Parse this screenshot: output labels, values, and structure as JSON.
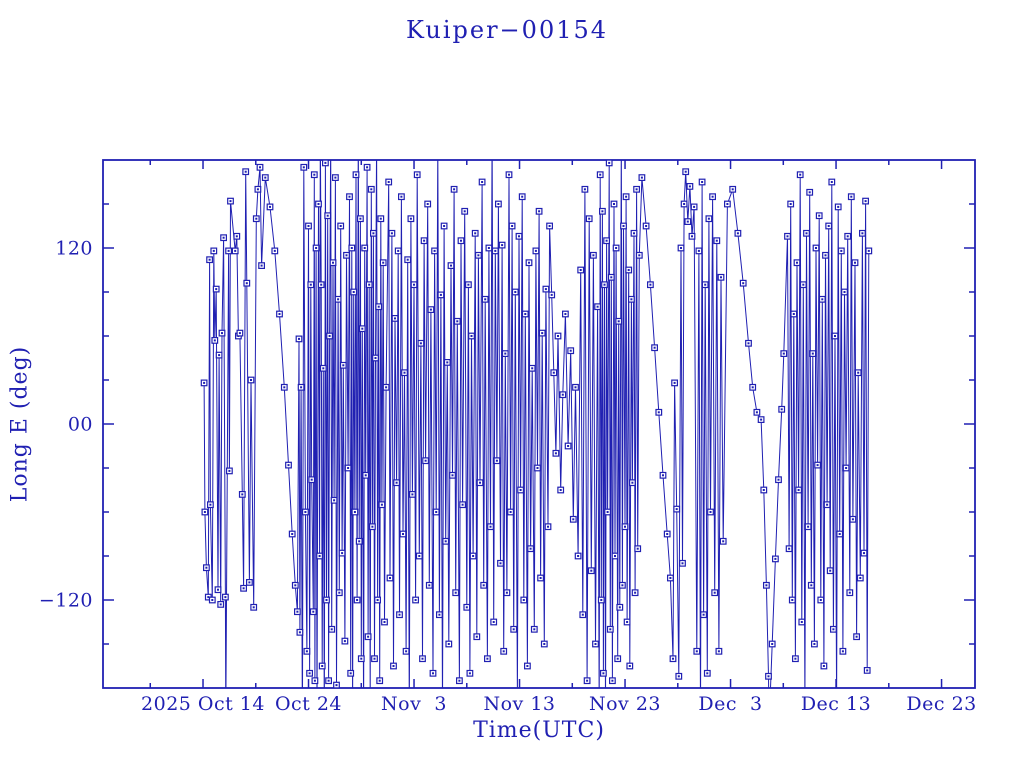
{
  "page": {
    "background": "#ffffff"
  },
  "colors": {
    "accent": "#2020b2"
  },
  "chart_data": {
    "type": "line",
    "title": "Kuiper−00154",
    "xlabel": "Time(UTC)",
    "ylabel": "Long E (deg)",
    "marker": "open-square",
    "grid": false,
    "legend": "none",
    "x_axis": {
      "unit": "days since 2025 Oct 1 00:00 UTC",
      "min": 3.52,
      "max": 86.17,
      "major_ticks": [
        {
          "day": 13,
          "label": "2025 Oct 14"
        },
        {
          "day": 23,
          "label": "Oct 24"
        },
        {
          "day": 33,
          "label": "Nov  3"
        },
        {
          "day": 43,
          "label": "Nov 13"
        },
        {
          "day": 53,
          "label": "Nov 23"
        },
        {
          "day": 63,
          "label": "Dec  3"
        },
        {
          "day": 73,
          "label": "Dec 13"
        },
        {
          "day": 83,
          "label": "Dec 23"
        }
      ],
      "minor_tick_days": [
        8,
        18,
        28,
        38,
        48,
        58,
        68,
        78
      ]
    },
    "y_axis": {
      "min": -180,
      "max": 180,
      "major_ticks": [
        {
          "value": 120,
          "label": "120"
        },
        {
          "value": 0,
          "label": "00"
        },
        {
          "value": -120,
          "label": "−120"
        }
      ],
      "minor_tick_values": [
        -150,
        -90,
        -60,
        -30,
        30,
        60,
        90,
        150
      ]
    },
    "clip_note": "pairs are [day, longitude_deg]; |longitude|>180 entries are wrap segments clipped at the frame (no marker drawn)",
    "points": [
      [
        13.1,
        28
      ],
      [
        13.18,
        -60
      ],
      [
        13.32,
        -98
      ],
      [
        13.5,
        -118
      ],
      [
        13.62,
        112
      ],
      [
        13.7,
        -55
      ],
      [
        13.88,
        -120
      ],
      [
        14.02,
        118
      ],
      [
        14.12,
        57
      ],
      [
        14.25,
        92
      ],
      [
        14.42,
        -113
      ],
      [
        14.52,
        47
      ],
      [
        14.68,
        -123
      ],
      [
        14.8,
        62
      ],
      [
        14.95,
        127
      ],
      [
        15.12,
        -118
      ],
      [
        15.16,
        -200
      ],
      [
        15.42,
        118
      ],
      [
        15.5,
        -32
      ],
      [
        15.6,
        152
      ],
      [
        16.05,
        118
      ],
      [
        16.2,
        128
      ],
      [
        16.35,
        60
      ],
      [
        16.5,
        62
      ],
      [
        16.72,
        -48
      ],
      [
        16.85,
        -112
      ],
      [
        17.05,
        172
      ],
      [
        17.15,
        96
      ],
      [
        17.4,
        -108
      ],
      [
        17.55,
        30
      ],
      [
        17.8,
        -125
      ],
      [
        18.05,
        140
      ],
      [
        18.2,
        160
      ],
      [
        18.4,
        175
      ],
      [
        18.55,
        108
      ],
      [
        18.9,
        168
      ],
      [
        19.35,
        148
      ],
      [
        19.8,
        118
      ],
      [
        20.25,
        75
      ],
      [
        20.7,
        25
      ],
      [
        21.1,
        -28
      ],
      [
        21.45,
        -75
      ],
      [
        21.75,
        -110
      ],
      [
        21.95,
        -128
      ],
      [
        22.1,
        58
      ],
      [
        22.18,
        -142
      ],
      [
        22.3,
        25
      ],
      [
        22.42,
        -210
      ],
      [
        22.55,
        175
      ],
      [
        22.7,
        -60
      ],
      [
        22.85,
        -155
      ],
      [
        23.0,
        135
      ],
      [
        23.1,
        -170
      ],
      [
        23.22,
        95
      ],
      [
        23.3,
        -38
      ],
      [
        23.45,
        -128
      ],
      [
        23.55,
        170
      ],
      [
        23.6,
        -175
      ],
      [
        23.72,
        120
      ],
      [
        23.8,
        -200
      ],
      [
        23.95,
        150
      ],
      [
        24.05,
        -90
      ],
      [
        24.12,
        200
      ],
      [
        24.2,
        95
      ],
      [
        24.3,
        -165
      ],
      [
        24.4,
        38
      ],
      [
        24.5,
        -210
      ],
      [
        24.6,
        178
      ],
      [
        24.7,
        -120
      ],
      [
        24.82,
        142
      ],
      [
        24.9,
        -175
      ],
      [
        25.0,
        60
      ],
      [
        25.1,
        195
      ],
      [
        25.2,
        -140
      ],
      [
        25.32,
        110
      ],
      [
        25.42,
        -52
      ],
      [
        25.55,
        168
      ],
      [
        25.65,
        -178
      ],
      [
        25.8,
        85
      ],
      [
        25.92,
        -115
      ],
      [
        26.05,
        135
      ],
      [
        26.18,
        -88
      ],
      [
        26.3,
        40
      ],
      [
        26.45,
        -148
      ],
      [
        26.6,
        115
      ],
      [
        26.75,
        -30
      ],
      [
        26.88,
        155
      ],
      [
        27.0,
        -170
      ],
      [
        27.1,
        120
      ],
      [
        27.18,
        -195
      ],
      [
        27.28,
        90
      ],
      [
        27.4,
        -60
      ],
      [
        27.5,
        170
      ],
      [
        27.6,
        -120
      ],
      [
        27.72,
        210
      ],
      [
        27.8,
        -80
      ],
      [
        27.92,
        140
      ],
      [
        28.0,
        -160
      ],
      [
        28.1,
        65
      ],
      [
        28.22,
        -200
      ],
      [
        28.32,
        120
      ],
      [
        28.42,
        -35
      ],
      [
        28.55,
        175
      ],
      [
        28.65,
        -145
      ],
      [
        28.75,
        95
      ],
      [
        28.85,
        -190
      ],
      [
        28.95,
        160
      ],
      [
        29.05,
        -70
      ],
      [
        29.15,
        130
      ],
      [
        29.25,
        -160
      ],
      [
        29.35,
        45
      ],
      [
        29.45,
        195
      ],
      [
        29.55,
        -120
      ],
      [
        29.65,
        80
      ],
      [
        29.75,
        -175
      ],
      [
        29.85,
        140
      ],
      [
        29.95,
        -55
      ],
      [
        30.08,
        110
      ],
      [
        30.2,
        -135
      ],
      [
        30.35,
        25
      ],
      [
        30.6,
        165
      ],
      [
        30.72,
        -105
      ],
      [
        30.9,
        130
      ],
      [
        31.05,
        -165
      ],
      [
        31.2,
        72
      ],
      [
        31.35,
        -40
      ],
      [
        31.5,
        118
      ],
      [
        31.62,
        -130
      ],
      [
        31.8,
        155
      ],
      [
        31.95,
        -75
      ],
      [
        32.1,
        35
      ],
      [
        32.25,
        -155
      ],
      [
        32.4,
        112
      ],
      [
        32.55,
        -200
      ],
      [
        32.7,
        140
      ],
      [
        32.85,
        -48
      ],
      [
        33.0,
        95
      ],
      [
        33.15,
        -120
      ],
      [
        33.3,
        170
      ],
      [
        33.5,
        -90
      ],
      [
        33.65,
        55
      ],
      [
        33.8,
        -160
      ],
      [
        33.95,
        125
      ],
      [
        34.1,
        -25
      ],
      [
        34.3,
        150
      ],
      [
        34.45,
        -110
      ],
      [
        34.6,
        78
      ],
      [
        34.8,
        -170
      ],
      [
        34.95,
        118
      ],
      [
        35.1,
        -60
      ],
      [
        35.25,
        190
      ],
      [
        35.4,
        -130
      ],
      [
        35.55,
        88
      ],
      [
        35.7,
        -195
      ],
      [
        35.85,
        135
      ],
      [
        36.0,
        -80
      ],
      [
        36.15,
        42
      ],
      [
        36.3,
        -150
      ],
      [
        36.5,
        108
      ],
      [
        36.65,
        -35
      ],
      [
        36.8,
        160
      ],
      [
        36.95,
        -115
      ],
      [
        37.1,
        70
      ],
      [
        37.3,
        -175
      ],
      [
        37.45,
        125
      ],
      [
        37.6,
        -55
      ],
      [
        37.8,
        145
      ],
      [
        38.0,
        -125
      ],
      [
        38.15,
        95
      ],
      [
        38.3,
        -170
      ],
      [
        38.45,
        60
      ],
      [
        38.6,
        -90
      ],
      [
        38.8,
        130
      ],
      [
        38.95,
        -145
      ],
      [
        39.1,
        115
      ],
      [
        39.25,
        -40
      ],
      [
        39.45,
        165
      ],
      [
        39.6,
        -110
      ],
      [
        39.75,
        85
      ],
      [
        39.95,
        -160
      ],
      [
        40.1,
        120
      ],
      [
        40.25,
        -70
      ],
      [
        40.4,
        200
      ],
      [
        40.55,
        -135
      ],
      [
        40.7,
        118
      ],
      [
        40.85,
        -25
      ],
      [
        41.0,
        150
      ],
      [
        41.2,
        -95
      ],
      [
        41.35,
        122
      ],
      [
        41.5,
        -155
      ],
      [
        41.65,
        48
      ],
      [
        41.8,
        -115
      ],
      [
        42.0,
        170
      ],
      [
        42.15,
        -60
      ],
      [
        42.3,
        135
      ],
      [
        42.45,
        -140
      ],
      [
        42.6,
        90
      ],
      [
        42.8,
        -185
      ],
      [
        42.95,
        128
      ],
      [
        43.1,
        -45
      ],
      [
        43.25,
        155
      ],
      [
        43.4,
        -120
      ],
      [
        43.55,
        75
      ],
      [
        43.75,
        -165
      ],
      [
        43.9,
        110
      ],
      [
        44.05,
        -85
      ],
      [
        44.2,
        38
      ],
      [
        44.4,
        -140
      ],
      [
        44.55,
        118
      ],
      [
        44.7,
        -30
      ],
      [
        44.85,
        145
      ],
      [
        45.0,
        -105
      ],
      [
        45.15,
        62
      ],
      [
        45.35,
        -150
      ],
      [
        45.5,
        92
      ],
      [
        45.7,
        -70
      ],
      [
        45.85,
        135
      ],
      [
        46.05,
        88
      ],
      [
        46.25,
        35
      ],
      [
        46.45,
        -20
      ],
      [
        46.65,
        60
      ],
      [
        46.9,
        -45
      ],
      [
        47.1,
        20
      ],
      [
        47.35,
        75
      ],
      [
        47.6,
        -15
      ],
      [
        47.85,
        50
      ],
      [
        48.1,
        -65
      ],
      [
        48.3,
        25
      ],
      [
        48.55,
        -90
      ],
      [
        48.8,
        105
      ],
      [
        49.0,
        -130
      ],
      [
        49.2,
        160
      ],
      [
        49.4,
        -175
      ],
      [
        49.6,
        140
      ],
      [
        49.8,
        -100
      ],
      [
        50.0,
        115
      ],
      [
        50.2,
        -150
      ],
      [
        50.4,
        80
      ],
      [
        50.55,
        -195
      ],
      [
        50.65,
        170
      ],
      [
        50.75,
        -120
      ],
      [
        50.85,
        145
      ],
      [
        50.95,
        -170
      ],
      [
        51.05,
        95
      ],
      [
        51.15,
        -200
      ],
      [
        51.25,
        125
      ],
      [
        51.35,
        -60
      ],
      [
        51.5,
        178
      ],
      [
        51.6,
        -140
      ],
      [
        51.7,
        100
      ],
      [
        51.8,
        -175
      ],
      [
        51.95,
        150
      ],
      [
        52.05,
        -90
      ],
      [
        52.15,
        120
      ],
      [
        52.3,
        -160
      ],
      [
        52.4,
        70
      ],
      [
        52.5,
        -125
      ],
      [
        52.65,
        195
      ],
      [
        52.75,
        -110
      ],
      [
        52.85,
        135
      ],
      [
        53.0,
        -70
      ],
      [
        53.1,
        155
      ],
      [
        53.2,
        -135
      ],
      [
        53.35,
        105
      ],
      [
        53.45,
        -165
      ],
      [
        53.6,
        85
      ],
      [
        53.7,
        -40
      ],
      [
        53.85,
        130
      ],
      [
        53.95,
        -115
      ],
      [
        54.1,
        160
      ],
      [
        54.2,
        -85
      ],
      [
        54.35,
        115
      ],
      [
        54.6,
        168
      ],
      [
        55.0,
        135
      ],
      [
        55.4,
        95
      ],
      [
        55.8,
        52
      ],
      [
        56.2,
        8
      ],
      [
        56.6,
        -35
      ],
      [
        57.0,
        -75
      ],
      [
        57.3,
        -105
      ],
      [
        57.55,
        -160
      ],
      [
        57.7,
        28
      ],
      [
        57.9,
        -58
      ],
      [
        58.1,
        -172
      ],
      [
        58.3,
        120
      ],
      [
        58.45,
        -95
      ],
      [
        58.6,
        150
      ],
      [
        58.75,
        172
      ],
      [
        58.95,
        138
      ],
      [
        59.15,
        162
      ],
      [
        59.35,
        128
      ],
      [
        59.55,
        148
      ],
      [
        59.8,
        -155
      ],
      [
        60.0,
        118
      ],
      [
        60.15,
        -200
      ],
      [
        60.3,
        165
      ],
      [
        60.45,
        -130
      ],
      [
        60.6,
        95
      ],
      [
        60.8,
        -170
      ],
      [
        60.95,
        140
      ],
      [
        61.1,
        -60
      ],
      [
        61.3,
        155
      ],
      [
        61.5,
        -115
      ],
      [
        61.7,
        125
      ],
      [
        61.9,
        -155
      ],
      [
        62.1,
        100
      ],
      [
        62.3,
        -80
      ],
      [
        62.7,
        150
      ],
      [
        63.2,
        160
      ],
      [
        63.7,
        130
      ],
      [
        64.2,
        96
      ],
      [
        64.7,
        55
      ],
      [
        65.1,
        25
      ],
      [
        65.5,
        8
      ],
      [
        65.9,
        3
      ],
      [
        66.15,
        -45
      ],
      [
        66.4,
        -110
      ],
      [
        66.6,
        -172
      ],
      [
        66.65,
        -205
      ],
      [
        66.95,
        -150
      ],
      [
        67.25,
        -92
      ],
      [
        67.55,
        -38
      ],
      [
        67.85,
        10
      ],
      [
        68.05,
        48
      ],
      [
        68.4,
        128
      ],
      [
        68.55,
        -85
      ],
      [
        68.7,
        150
      ],
      [
        68.85,
        -120
      ],
      [
        69.0,
        75
      ],
      [
        69.15,
        -160
      ],
      [
        69.3,
        110
      ],
      [
        69.45,
        -45
      ],
      [
        69.6,
        170
      ],
      [
        69.75,
        -135
      ],
      [
        69.9,
        95
      ],
      [
        70.05,
        -190
      ],
      [
        70.2,
        130
      ],
      [
        70.35,
        -70
      ],
      [
        70.5,
        158
      ],
      [
        70.65,
        -110
      ],
      [
        70.8,
        48
      ],
      [
        70.95,
        -150
      ],
      [
        71.1,
        120
      ],
      [
        71.25,
        -28
      ],
      [
        71.4,
        142
      ],
      [
        71.55,
        -120
      ],
      [
        71.7,
        85
      ],
      [
        71.85,
        -165
      ],
      [
        72.0,
        115
      ],
      [
        72.15,
        -55
      ],
      [
        72.3,
        135
      ],
      [
        72.45,
        -100
      ],
      [
        72.6,
        165
      ],
      [
        72.75,
        -140
      ],
      [
        72.9,
        60
      ],
      [
        73.05,
        -190
      ],
      [
        73.2,
        148
      ],
      [
        73.35,
        -75
      ],
      [
        73.5,
        118
      ],
      [
        73.65,
        -155
      ],
      [
        73.8,
        90
      ],
      [
        73.95,
        -30
      ],
      [
        74.1,
        128
      ],
      [
        74.3,
        -115
      ],
      [
        74.45,
        155
      ],
      [
        74.6,
        -65
      ],
      [
        74.8,
        110
      ],
      [
        74.95,
        -145
      ],
      [
        75.1,
        35
      ],
      [
        75.3,
        -105
      ],
      [
        75.5,
        130
      ],
      [
        75.65,
        -88
      ],
      [
        75.8,
        152
      ],
      [
        75.95,
        -168
      ],
      [
        76.1,
        118
      ]
    ]
  }
}
